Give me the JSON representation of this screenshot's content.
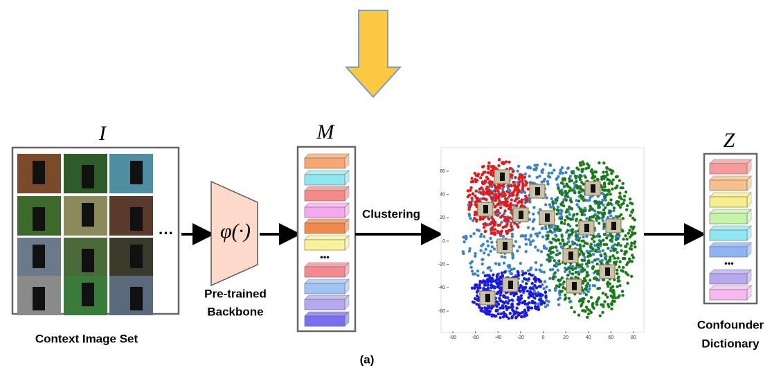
{
  "labels": {
    "image_set_symbol": "I",
    "memory_symbol": "M",
    "dictionary_symbol": "Z",
    "backbone_fn": "φ(·)",
    "context": "Context Image Set",
    "backbone": [
      "Pre-trained",
      "Backbone"
    ],
    "clustering": "Clustering",
    "dictionary": [
      "Confounder",
      "Dictionary"
    ],
    "caption": "(a)",
    "grid_ellipsis": "···",
    "bar_ellipsis": "•••"
  },
  "scatter": {
    "xticks": [
      -80,
      -60,
      -40,
      -20,
      0,
      20,
      40,
      60,
      80
    ],
    "yticks": [
      60,
      40,
      20,
      0,
      -20,
      -40,
      -60
    ]
  }
}
